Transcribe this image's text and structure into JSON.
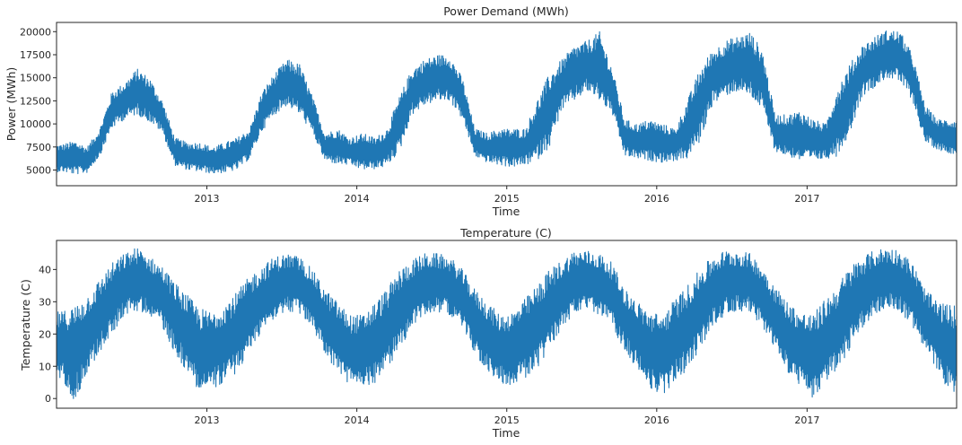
{
  "chart_data": [
    {
      "type": "line",
      "title": "Power Demand (MWh)",
      "xlabel": "Time",
      "ylabel": "Power (MWh)",
      "xlim": [
        "2012-01-01",
        "2017-12-31"
      ],
      "ylim": [
        3300,
        21000
      ],
      "x_ticks": [
        "2013",
        "2014",
        "2015",
        "2016",
        "2017"
      ],
      "y_ticks": [
        5000,
        7500,
        10000,
        12500,
        15000,
        17500,
        20000
      ],
      "grid": false,
      "series": [
        {
          "color": "#1f77b4",
          "x": [
            "2012-01",
            "2012-02",
            "2012-03",
            "2012-04",
            "2012-05",
            "2012-06",
            "2012-07",
            "2012-08",
            "2012-09",
            "2012-10",
            "2012-11",
            "2012-12",
            "2013-01",
            "2013-02",
            "2013-03",
            "2013-04",
            "2013-05",
            "2013-06",
            "2013-07",
            "2013-08",
            "2013-09",
            "2013-10",
            "2013-11",
            "2013-12",
            "2014-01",
            "2014-02",
            "2014-03",
            "2014-04",
            "2014-05",
            "2014-06",
            "2014-07",
            "2014-08",
            "2014-09",
            "2014-10",
            "2014-11",
            "2014-12",
            "2015-01",
            "2015-02",
            "2015-03",
            "2015-04",
            "2015-05",
            "2015-06",
            "2015-07",
            "2015-08",
            "2015-09",
            "2015-10",
            "2015-11",
            "2015-12",
            "2016-01",
            "2016-02",
            "2016-03",
            "2016-04",
            "2016-05",
            "2016-06",
            "2016-07",
            "2016-08",
            "2016-09",
            "2016-10",
            "2016-11",
            "2016-12",
            "2017-01",
            "2017-02",
            "2017-03",
            "2017-04",
            "2017-05",
            "2017-06",
            "2017-07",
            "2017-08",
            "2017-09",
            "2017-10",
            "2017-11",
            "2017-12"
          ],
          "low": [
            4800,
            4500,
            4700,
            6500,
            9500,
            10500,
            11000,
            10200,
            9000,
            5500,
            5000,
            4800,
            4600,
            4700,
            5000,
            6200,
            9200,
            11000,
            12000,
            11000,
            9000,
            6000,
            5600,
            5500,
            5000,
            5100,
            5400,
            7000,
            11000,
            12000,
            12500,
            12500,
            10500,
            6500,
            5800,
            5500,
            5300,
            5500,
            6000,
            7500,
            11500,
            12500,
            13500,
            12500,
            11000,
            6500,
            6200,
            6000,
            5800,
            6000,
            6200,
            8000,
            12000,
            13000,
            13500,
            13000,
            11500,
            7000,
            6500,
            6000,
            6000,
            6200,
            6500,
            9000,
            13000,
            14000,
            15000,
            14500,
            12500,
            8000,
            7200,
            6800
          ],
          "high": [
            7800,
            8200,
            7500,
            9500,
            13500,
            14500,
            16000,
            15000,
            12500,
            8500,
            8000,
            8000,
            7500,
            8000,
            8500,
            9500,
            13500,
            15500,
            17000,
            16500,
            13000,
            9000,
            9500,
            8500,
            9000,
            8500,
            9500,
            13000,
            16000,
            17000,
            17500,
            17500,
            15000,
            9500,
            9000,
            9500,
            9500,
            9500,
            12500,
            15500,
            17000,
            18500,
            19000,
            20000,
            16000,
            10500,
            10000,
            10500,
            10000,
            9500,
            12500,
            16000,
            18000,
            19000,
            19500,
            20000,
            18000,
            11000,
            11000,
            11500,
            10500,
            10000,
            14000,
            16500,
            18500,
            19500,
            20200,
            20100,
            17500,
            12000,
            10500,
            10500
          ]
        }
      ]
    },
    {
      "type": "line",
      "title": "Temperature (C)",
      "xlabel": "Time",
      "ylabel": "Temperature (C)",
      "xlim": [
        "2012-01-01",
        "2017-12-31"
      ],
      "ylim": [
        -3,
        49
      ],
      "x_ticks": [
        "2013",
        "2014",
        "2015",
        "2016",
        "2017"
      ],
      "y_ticks": [
        0,
        10,
        20,
        30,
        40
      ],
      "grid": false,
      "series": [
        {
          "color": "#1f77b4",
          "x": [
            "2012-01",
            "2012-02",
            "2012-03",
            "2012-04",
            "2012-05",
            "2012-06",
            "2012-07",
            "2012-08",
            "2012-09",
            "2012-10",
            "2012-11",
            "2012-12",
            "2013-01",
            "2013-02",
            "2013-03",
            "2013-04",
            "2013-05",
            "2013-06",
            "2013-07",
            "2013-08",
            "2013-09",
            "2013-10",
            "2013-11",
            "2013-12",
            "2014-01",
            "2014-02",
            "2014-03",
            "2014-04",
            "2014-05",
            "2014-06",
            "2014-07",
            "2014-08",
            "2014-09",
            "2014-10",
            "2014-11",
            "2014-12",
            "2015-01",
            "2015-02",
            "2015-03",
            "2015-04",
            "2015-05",
            "2015-06",
            "2015-07",
            "2015-08",
            "2015-09",
            "2015-10",
            "2015-11",
            "2015-12",
            "2016-01",
            "2016-02",
            "2016-03",
            "2016-04",
            "2016-05",
            "2016-06",
            "2016-07",
            "2016-08",
            "2016-09",
            "2016-10",
            "2016-11",
            "2016-12",
            "2017-01",
            "2017-02",
            "2017-03",
            "2017-04",
            "2017-05",
            "2017-06",
            "2017-07",
            "2017-08",
            "2017-09",
            "2017-10",
            "2017-11",
            "2017-12"
          ],
          "low": [
            6,
            -1,
            8,
            14,
            20,
            26,
            27,
            26,
            22,
            14,
            8,
            2,
            3,
            5,
            8,
            14,
            21,
            25,
            27,
            26,
            22,
            14,
            8,
            4,
            3,
            5,
            9,
            15,
            22,
            26,
            27,
            26,
            22,
            14,
            8,
            5,
            4,
            6,
            9,
            15,
            22,
            26,
            27,
            26,
            22,
            15,
            9,
            3,
            1,
            5,
            9,
            15,
            22,
            26,
            27,
            27,
            22,
            15,
            8,
            4,
            -1,
            5,
            9,
            15,
            22,
            26,
            28,
            27,
            22,
            15,
            8,
            2
          ],
          "high": [
            27,
            29,
            32,
            37,
            42,
            45,
            47,
            44,
            41,
            36,
            32,
            28,
            27,
            30,
            33,
            38,
            41,
            44,
            45,
            44,
            40,
            34,
            30,
            26,
            26,
            30,
            34,
            40,
            43,
            45,
            45,
            44,
            40,
            34,
            30,
            26,
            27,
            31,
            35,
            40,
            43,
            46,
            46,
            45,
            42,
            34,
            30,
            27,
            26,
            31,
            35,
            40,
            44,
            46,
            46,
            45,
            41,
            35,
            30,
            27,
            26,
            31,
            35,
            41,
            44,
            46,
            47,
            46,
            42,
            34,
            30,
            29
          ]
        }
      ]
    }
  ]
}
